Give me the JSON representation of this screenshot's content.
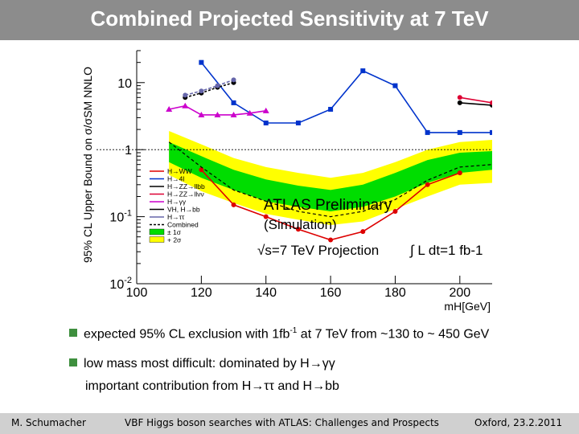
{
  "slide": {
    "title": "Combined Projected Sensitivity at 7 TeV",
    "footer_left": "M. Schumacher",
    "footer_center": "VBF Higgs boson searches with ATLAS: Challenges and Prospects",
    "footer_right": "Oxford, 23.2.2011"
  },
  "bullets": {
    "b1_pre": "expected  95% CL exclusion with 1fb",
    "b1_sup": "-1",
    "b1_post": " at 7 TeV from ~130 to ~ 450 GeV",
    "b2": "low mass most difficult: dominated by H→γγ",
    "b3": "important contribution from H→ττ and H→bb"
  },
  "colors": {
    "titlebar": "#8c8c8c",
    "footer": "#d0d0d0",
    "bullet": "#3e8f3e",
    "band1": "#00dd00",
    "band2": "#ffff00"
  },
  "chart_data": {
    "type": "line",
    "ylabel": "95% CL Upper Bound on σ/σSM NNLO",
    "xlabel": "mH[GeV]",
    "xlim": [
      100,
      210
    ],
    "ylim": [
      0.01,
      30
    ],
    "log_y": true,
    "x_ticks": [
      "100",
      "120",
      "140",
      "160",
      "180",
      "200"
    ],
    "y_ticks": [
      "10",
      "1",
      "10-1",
      "10-2"
    ],
    "annotations": {
      "atlas": "ATLAS Preliminary",
      "sim": "(Simulation)",
      "energy": "√s=7 TeV Projection",
      "lumi": "∫ L dt=1 fb-1"
    },
    "legend": {
      "placement": "lower-left",
      "entries": [
        "H→WW",
        "H→4l",
        "H→ZZ→llbb",
        "H→ZZ→llνν",
        "H→γγ",
        "VH, H→bb",
        "H→ττ",
        "Combined",
        "± 1σ",
        "+ 2σ"
      ]
    },
    "bands": {
      "x": [
        110,
        120,
        130,
        140,
        150,
        160,
        170,
        180,
        190,
        200,
        210
      ],
      "two_sigma_lo": [
        0.42,
        0.24,
        0.16,
        0.11,
        0.09,
        0.075,
        0.085,
        0.13,
        0.2,
        0.3,
        0.32
      ],
      "two_sigma_hi": [
        1.9,
        1.2,
        0.75,
        0.55,
        0.45,
        0.38,
        0.45,
        0.65,
        1.0,
        1.3,
        1.4
      ],
      "one_sigma_lo": [
        0.65,
        0.38,
        0.25,
        0.17,
        0.14,
        0.12,
        0.14,
        0.2,
        0.32,
        0.45,
        0.5
      ],
      "one_sigma_hi": [
        1.3,
        0.8,
        0.5,
        0.36,
        0.29,
        0.25,
        0.3,
        0.45,
        0.7,
        0.9,
        0.95
      ]
    },
    "series": [
      {
        "name": "H→WW",
        "color": "#dd0000",
        "x": [
          120,
          130,
          140,
          150,
          160,
          170,
          180,
          190,
          200
        ],
        "y": [
          0.5,
          0.15,
          0.1,
          0.065,
          0.045,
          0.06,
          0.12,
          0.3,
          0.45
        ]
      },
      {
        "name": "H→4l",
        "color": "#0033cc",
        "x": [
          120,
          130,
          140,
          150,
          160,
          170,
          180,
          190,
          200,
          210
        ],
        "y": [
          20,
          5,
          2.5,
          2.5,
          4,
          15,
          9,
          1.8,
          1.8,
          1.8
        ]
      },
      {
        "name": "H→ZZ→llbb",
        "color": "#000000",
        "x": [
          200,
          210
        ],
        "y": [
          5.0,
          4.6
        ]
      },
      {
        "name": "H→ZZ→llνν",
        "color": "#dd0033",
        "x": [
          200,
          210
        ],
        "y": [
          6.0,
          5.0
        ]
      },
      {
        "name": "H→γγ",
        "color": "#cc00cc",
        "x": [
          110,
          115,
          120,
          125,
          130,
          135,
          140
        ],
        "y": [
          4,
          4.5,
          3.3,
          3.3,
          3.3,
          3.5,
          3.8
        ]
      },
      {
        "name": "VH, H→bb",
        "color": "#000000",
        "x": [
          115,
          120,
          125,
          130
        ],
        "y": [
          6.0,
          7.0,
          8.5,
          10
        ]
      },
      {
        "name": "H→ττ",
        "color": "#6666aa",
        "x": [
          115,
          120,
          125,
          130
        ],
        "y": [
          6.5,
          7.5,
          9,
          11
        ]
      },
      {
        "name": "Combined",
        "color": "#000000",
        "x": [
          110,
          120,
          130,
          140,
          150,
          160,
          170,
          180,
          190,
          200,
          210
        ],
        "y": [
          1.3,
          0.55,
          0.25,
          0.17,
          0.12,
          0.1,
          0.12,
          0.18,
          0.35,
          0.55,
          0.6
        ]
      }
    ],
    "reference_line": 1
  }
}
